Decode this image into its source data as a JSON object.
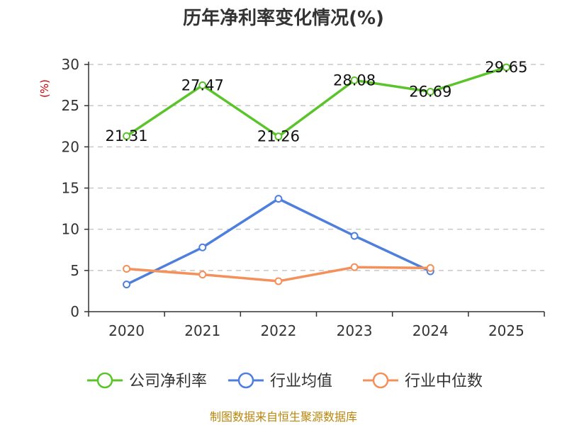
{
  "chart_data": {
    "type": "line",
    "title": "历年净利率变化情况(%)",
    "ylabel": "(%)",
    "categories": [
      "2020",
      "2021",
      "2022",
      "2023",
      "2024",
      "2025"
    ],
    "ylim": [
      0,
      30
    ],
    "yticks": [
      0,
      5,
      10,
      15,
      20,
      25,
      30
    ],
    "grid": true,
    "legend_position": "bottom",
    "series": [
      {
        "name": "公司净利率",
        "color": "#5bc42b",
        "values": [
          21.31,
          27.47,
          21.26,
          28.08,
          26.69,
          29.65
        ],
        "labels": [
          "21.31",
          "27.47",
          "21.26",
          "28.08",
          "26.69",
          "29.65"
        ]
      },
      {
        "name": "行业均值",
        "color": "#4f7fdc",
        "values": [
          3.3,
          7.8,
          13.7,
          9.2,
          4.9,
          null
        ]
      },
      {
        "name": "行业中位数",
        "color": "#f4905a",
        "values": [
          5.2,
          4.5,
          3.7,
          5.4,
          5.3,
          null
        ]
      }
    ]
  },
  "source": "制图数据来自恒生聚源数据库"
}
